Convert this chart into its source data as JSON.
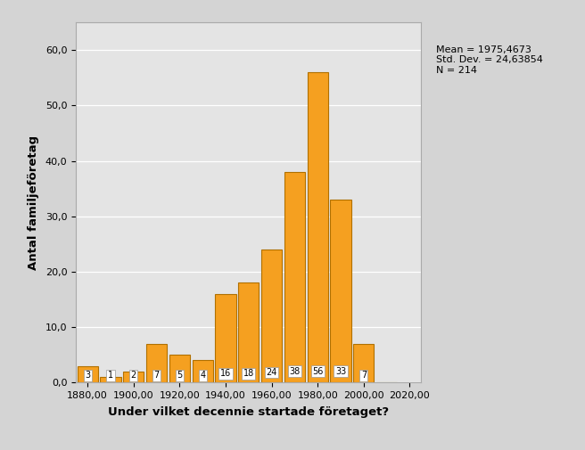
{
  "decades": [
    1880,
    1890,
    1900,
    1910,
    1920,
    1930,
    1940,
    1950,
    1960,
    1970,
    1980,
    1990,
    2000,
    2010
  ],
  "counts": [
    3,
    1,
    2,
    7,
    5,
    4,
    16,
    18,
    24,
    38,
    56,
    33,
    7,
    0
  ],
  "bar_color": "#F5A020",
  "bar_edge_color": "#B07000",
  "plot_bg_color": "#E4E4E4",
  "fig_bg_color": "#D4D4D4",
  "xlabel": "Under vilket decennie startade företaget?",
  "ylabel": "Antal familjeFöretag",
  "xlim": [
    1875,
    2025
  ],
  "ylim": [
    0,
    65
  ],
  "xticks": [
    1880,
    1900,
    1920,
    1940,
    1960,
    1980,
    2000,
    2020
  ],
  "yticks": [
    0,
    10,
    20,
    30,
    40,
    50,
    60
  ],
  "stats_text": "Mean = 1975,4673\nStd. Dev. = 24,63854\nN = 214",
  "bar_width": 9.0,
  "label_decades": [
    1880,
    1890,
    1900,
    1910,
    1920,
    1930,
    1940,
    1950,
    1960,
    1970,
    1980,
    1990,
    2000
  ],
  "label_values": [
    3,
    1,
    2,
    7,
    5,
    4,
    16,
    18,
    24,
    38,
    56,
    33,
    7
  ],
  "label_y_positions": [
    0.5,
    0.5,
    0.5,
    0.5,
    0.5,
    0.5,
    0.8,
    0.8,
    1.0,
    1.2,
    1.2,
    1.2,
    0.5
  ]
}
